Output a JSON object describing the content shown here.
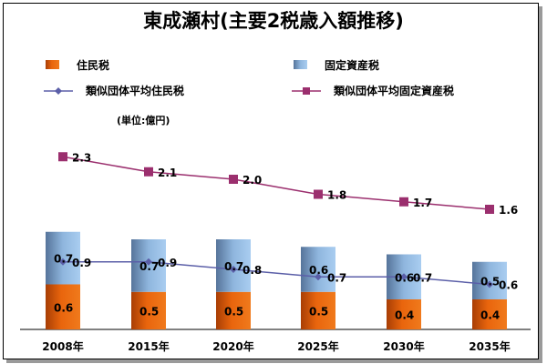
{
  "chart_data": {
    "type": "bar",
    "title": "東成瀬村(主要2税歳入額推移)",
    "unit_label": "(単位:億円)",
    "categories": [
      "2008年",
      "2015年",
      "2020年",
      "2025年",
      "2030年",
      "2035年"
    ],
    "stacked_bars": [
      {
        "name": "住民税",
        "values": [
          0.6,
          0.5,
          0.5,
          0.5,
          0.4,
          0.4
        ],
        "color": "#e8620a"
      },
      {
        "name": "固定資産税",
        "values": [
          0.7,
          0.7,
          0.7,
          0.6,
          0.6,
          0.5
        ],
        "color": "#8fb8e2"
      }
    ],
    "lines": [
      {
        "name": "類似団体平均住民税",
        "values": [
          0.9,
          0.9,
          0.8,
          0.7,
          0.7,
          0.6
        ],
        "color": "#5b5fa8",
        "marker": "diamond"
      },
      {
        "name": "類似団体平均固定資産税",
        "values": [
          2.3,
          2.1,
          2.0,
          1.8,
          1.7,
          1.6
        ],
        "color": "#9b2f6e",
        "marker": "square"
      }
    ],
    "legend": [
      "住民税",
      "固定資産税",
      "類似団体平均住民税",
      "類似団体平均固定資産税"
    ]
  }
}
